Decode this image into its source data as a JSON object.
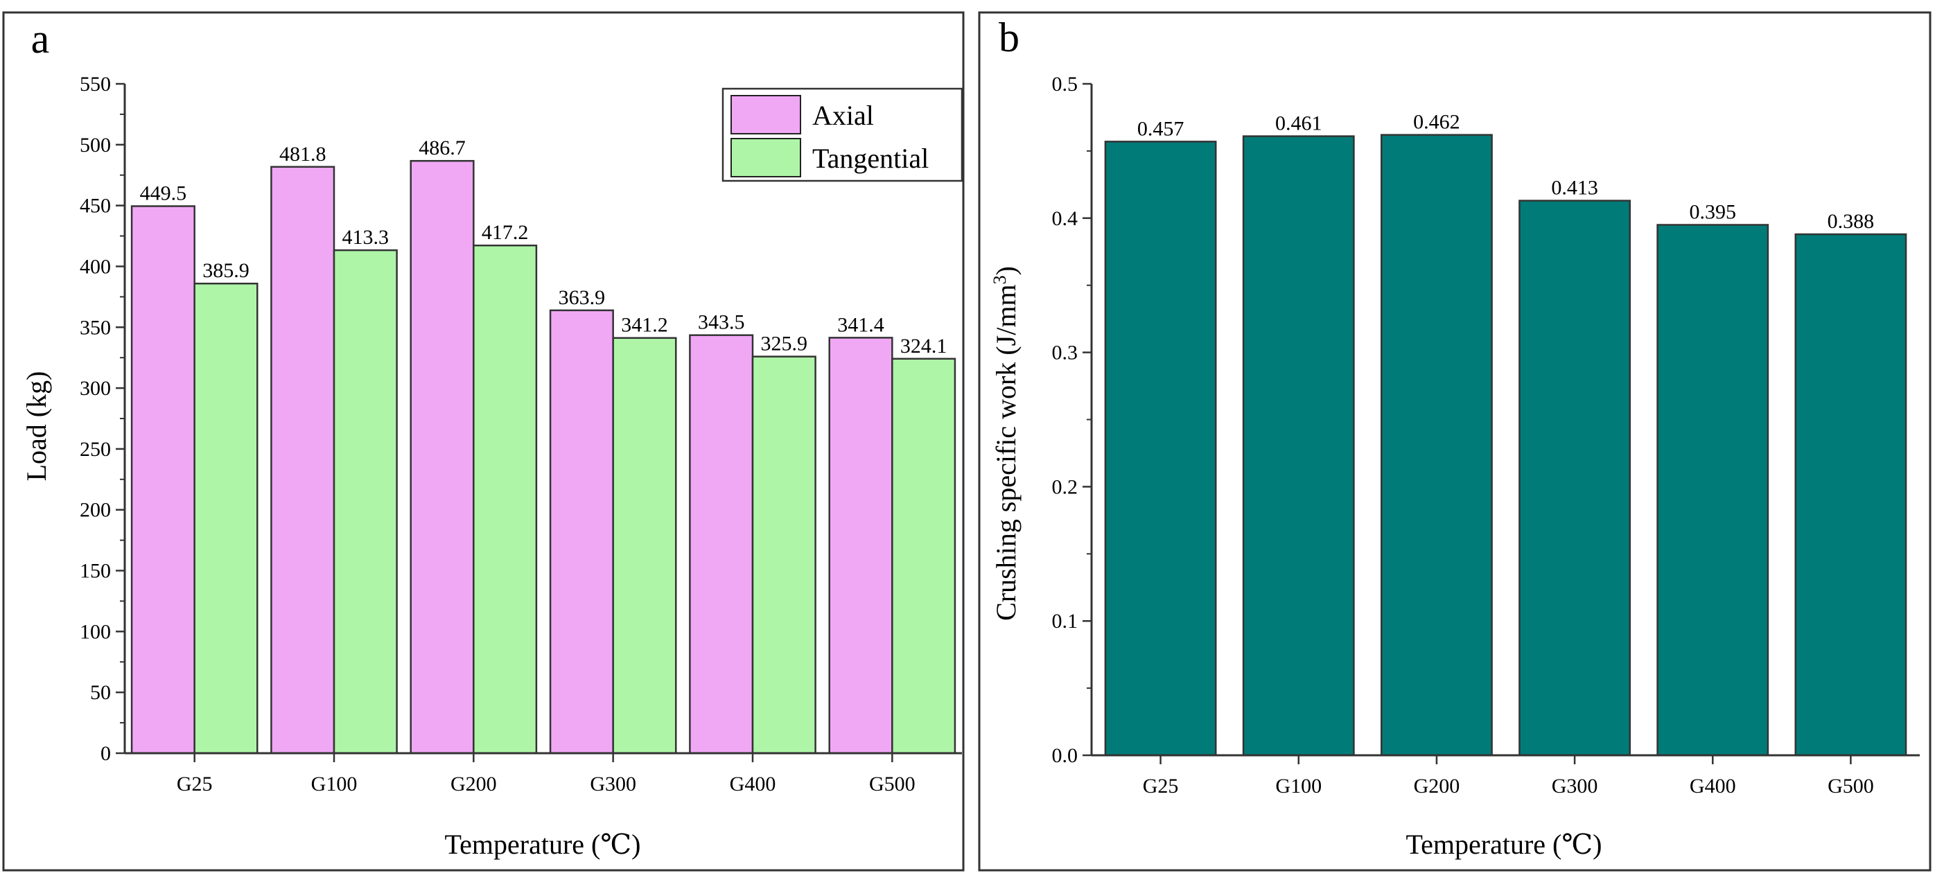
{
  "chart_data": [
    {
      "type": "bar",
      "panel_label": "a",
      "categories": [
        "G25",
        "G100",
        "G200",
        "G300",
        "G400",
        "G500"
      ],
      "series": [
        {
          "name": "Axial",
          "color": "#f0a8f5",
          "values": [
            449.5,
            481.8,
            486.7,
            363.9,
            343.5,
            341.4
          ],
          "labels": [
            "449.5",
            "481.8",
            "486.7",
            "363.9",
            "343.5",
            "341.4"
          ]
        },
        {
          "name": "Tangential",
          "color": "#aef5a8",
          "values": [
            385.9,
            413.3,
            417.2,
            341.2,
            325.9,
            324.1
          ],
          "labels": [
            "385.9",
            "413.3",
            "417.2",
            "341.2",
            "325.9",
            "324.1"
          ]
        }
      ],
      "xlabel": "Temperature (℃)",
      "ylabel": "Load (kg)",
      "ylim": [
        0,
        550
      ],
      "yticks": [
        0,
        50,
        100,
        150,
        200,
        250,
        300,
        350,
        400,
        450,
        500,
        550
      ],
      "ytick_labels": [
        "0",
        "50",
        "100",
        "150",
        "200",
        "250",
        "300",
        "350",
        "400",
        "450",
        "500",
        "550"
      ],
      "legend_position": "top-right"
    },
    {
      "type": "bar",
      "panel_label": "b",
      "categories": [
        "G25",
        "G100",
        "G200",
        "G300",
        "G400",
        "G500"
      ],
      "series": [
        {
          "name": "Crushing specific work",
          "color": "#007b78",
          "values": [
            0.457,
            0.461,
            0.462,
            0.413,
            0.395,
            0.388
          ],
          "labels": [
            "0.457",
            "0.461",
            "0.462",
            "0.413",
            "0.395",
            "0.388"
          ]
        }
      ],
      "xlabel": "Temperature (℃)",
      "ylabel_main": "Crushing specific work (J/mm",
      "ylabel_sup": "3",
      "ylabel_end": ")",
      "ylim": [
        0,
        0.5
      ],
      "yticks": [
        0,
        0.1,
        0.2,
        0.3,
        0.4,
        0.5
      ],
      "ytick_labels": [
        "0.0",
        "0.1",
        "0.2",
        "0.3",
        "0.4",
        "0.5"
      ]
    }
  ]
}
